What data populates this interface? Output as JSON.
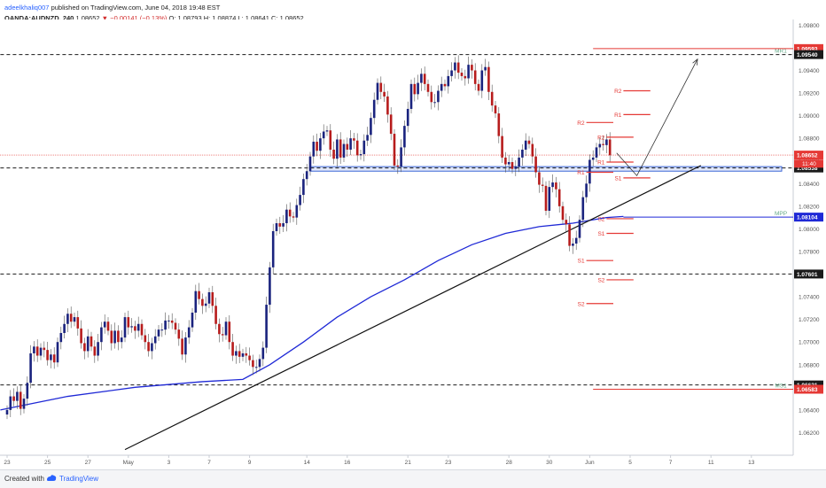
{
  "header": {
    "author": "adeelkhaliq007",
    "published": "published on TradingView.com, June 04, 2018 19:48 EST",
    "symbol": "OANDA:AUDNZD, 240",
    "last": "1.08652",
    "change": "−0.00141 (−0.13%)",
    "ohlc": "O: 1.08793  H: 1.08874  L: 1.08641  C: 1.08652"
  },
  "footer": {
    "created": "Created with",
    "brand": "TradingView"
  },
  "colors": {
    "up": "#1a237e",
    "down": "#b71c1c",
    "ma": "#1f29d6",
    "pivot": "#e53935",
    "level": "#1a1a1a",
    "support_zone": "#3c66d6",
    "axis_text": "#555555",
    "mpp": "#1f29d6",
    "current": "#e53935"
  },
  "chart_data": {
    "type": "candlestick",
    "y_range": [
      1.06,
      1.0985
    ],
    "y_ticks": [
      "1.09800",
      "1.09600",
      "1.09400",
      "1.09200",
      "1.09000",
      "1.08800",
      "1.08600",
      "1.08400",
      "1.08200",
      "1.08000",
      "1.07800",
      "1.07600",
      "1.07400",
      "1.07200",
      "1.07000",
      "1.06800",
      "1.06600",
      "1.06400",
      "1.06200"
    ],
    "x_labels": [
      {
        "label": "23",
        "i": 2
      },
      {
        "label": "25",
        "i": 14
      },
      {
        "label": "27",
        "i": 26
      },
      {
        "label": "May",
        "i": 38
      },
      {
        "label": "3",
        "i": 50
      },
      {
        "label": "7",
        "i": 62
      },
      {
        "label": "9",
        "i": 74
      },
      {
        "label": "14",
        "i": 91
      },
      {
        "label": "16",
        "i": 103
      },
      {
        "label": "21",
        "i": 121
      },
      {
        "label": "23",
        "i": 133
      },
      {
        "label": "28",
        "i": 151
      },
      {
        "label": "30",
        "i": 163
      },
      {
        "label": "Jun",
        "i": 175
      },
      {
        "label": "5",
        "i": 187
      },
      {
        "label": "7",
        "i": 199
      },
      {
        "label": "11",
        "i": 211
      },
      {
        "label": "13",
        "i": 223
      }
    ],
    "x_total": 232,
    "candles_close": [
      1.064,
      1.0652,
      1.0648,
      1.0656,
      1.0641,
      1.065,
      1.0664,
      1.069,
      1.0696,
      1.0688,
      1.0695,
      1.0693,
      1.0684,
      1.0689,
      1.0682,
      1.07,
      1.0708,
      1.0716,
      1.0725,
      1.0718,
      1.0722,
      1.0712,
      1.0699,
      1.0692,
      1.0705,
      1.0696,
      1.0688,
      1.07,
      1.0713,
      1.0718,
      1.071,
      1.0699,
      1.071,
      1.07,
      1.0704,
      1.0722,
      1.0713,
      1.0714,
      1.071,
      1.0716,
      1.0706,
      1.07,
      1.0692,
      1.0699,
      1.0705,
      1.0711,
      1.0711,
      1.0719,
      1.0719,
      1.0717,
      1.0711,
      1.0703,
      1.0689,
      1.0704,
      1.0713,
      1.0726,
      1.0745,
      1.0738,
      1.0732,
      1.0734,
      1.0744,
      1.0732,
      1.0716,
      1.0707,
      1.0706,
      1.0718,
      1.07,
      1.0688,
      1.0692,
      1.0687,
      1.069,
      1.0688,
      1.0684,
      1.0678,
      1.0678,
      1.0685,
      1.0695,
      1.0733,
      1.0766,
      1.0798,
      1.0805,
      1.0802,
      1.0805,
      1.0817,
      1.0811,
      1.081,
      1.0821,
      1.083,
      1.0844,
      1.0851,
      1.0864,
      1.0877,
      1.0869,
      1.088,
      1.0886,
      1.0887,
      1.087,
      1.0862,
      1.0879,
      1.0863,
      1.0875,
      1.087,
      1.088,
      1.0878,
      1.0865,
      1.0866,
      1.0878,
      1.0883,
      1.0898,
      1.0914,
      1.0929,
      1.0921,
      1.0917,
      1.0901,
      1.0884,
      1.0856,
      1.0855,
      1.0872,
      1.0891,
      1.0906,
      1.0928,
      1.0919,
      1.0929,
      1.0937,
      1.0928,
      1.0921,
      1.0912,
      1.0912,
      1.0922,
      1.0928,
      1.0926,
      1.0935,
      1.094,
      1.0947,
      1.0938,
      1.0935,
      1.0933,
      1.0945,
      1.094,
      1.0928,
      1.0922,
      1.094,
      1.0943,
      1.0921,
      1.0909,
      1.0902,
      1.0882,
      1.0863,
      1.0857,
      1.0859,
      1.0853,
      1.0855,
      1.0863,
      1.087,
      1.0878,
      1.0875,
      1.0864,
      1.085,
      1.0839,
      1.0838,
      1.0816,
      1.0837,
      1.0841,
      1.0835,
      1.082,
      1.0808,
      1.0804,
      1.0785,
      1.0787,
      1.0792,
      1.0808,
      1.0828,
      1.084,
      1.0861,
      1.0863,
      1.0872,
      1.0875,
      1.0874,
      1.0879,
      1.0865
    ],
    "candle_start": 2,
    "ma": [
      [
        0,
        1.064
      ],
      [
        20,
        1.0652
      ],
      [
        40,
        1.066
      ],
      [
        60,
        1.0665
      ],
      [
        72,
        1.0667
      ],
      [
        80,
        1.068
      ],
      [
        90,
        1.07
      ],
      [
        100,
        1.0722
      ],
      [
        110,
        1.074
      ],
      [
        120,
        1.0755
      ],
      [
        130,
        1.0772
      ],
      [
        140,
        1.0786
      ],
      [
        150,
        1.0796
      ],
      [
        160,
        1.0802
      ],
      [
        170,
        1.0805
      ],
      [
        180,
        1.081
      ],
      [
        185,
        1.0811
      ]
    ],
    "trendline": {
      "start": [
        37,
        1.0605
      ],
      "end": [
        208,
        1.0856
      ]
    },
    "projection": [
      [
        183,
        1.0867
      ],
      [
        189,
        1.0847
      ],
      [
        207,
        1.095
      ]
    ],
    "levels": [
      {
        "name": "MR1",
        "value": 1.0954,
        "style": "dashed",
        "from": 0,
        "label": "MR1"
      },
      {
        "name": "level_1.08538",
        "value": 1.08538,
        "style": "dashed",
        "from": 0,
        "label": ""
      },
      {
        "name": "level_1.07601",
        "value": 1.07601,
        "style": "dashed",
        "from": 0,
        "label": ""
      },
      {
        "name": "level_1.06621",
        "value": 1.06621,
        "style": "dashed",
        "from": 0,
        "label": ""
      },
      {
        "name": "MS1",
        "value": 1.06583,
        "style": "solid_red",
        "from": 176,
        "label": "MS1"
      },
      {
        "name": "MPP",
        "value": 1.08104,
        "style": "solid_blue",
        "from": 185,
        "label": "MPP"
      },
      {
        "name": "red_top",
        "value": 1.09593,
        "style": "solid_red",
        "from": 176,
        "label": ""
      }
    ],
    "support_zone": {
      "from": 92,
      "to": 232,
      "low": 1.0851,
      "high": 1.0855
    },
    "pivots": [
      {
        "label": "R2",
        "value": 1.0922,
        "x0": 185,
        "x1": 193
      },
      {
        "label": "R1",
        "value": 1.0901,
        "x0": 185,
        "x1": 193
      },
      {
        "label": "R2",
        "value": 1.0894,
        "x0": 174,
        "x1": 182
      },
      {
        "label": "R2",
        "value": 1.0881,
        "x0": 180,
        "x1": 188
      },
      {
        "label": "R1",
        "value": 1.0859,
        "x0": 180,
        "x1": 188
      },
      {
        "label": "R1",
        "value": 1.085,
        "x0": 174,
        "x1": 182
      },
      {
        "label": "S1",
        "value": 1.0845,
        "x0": 185,
        "x1": 193
      },
      {
        "label": "S2",
        "value": 1.0809,
        "x0": 180,
        "x1": 188
      },
      {
        "label": "S1",
        "value": 1.0796,
        "x0": 180,
        "x1": 188
      },
      {
        "label": "S1",
        "value": 1.0772,
        "x0": 174,
        "x1": 182
      },
      {
        "label": "S2",
        "value": 1.0755,
        "x0": 180,
        "x1": 188
      },
      {
        "label": "S2",
        "value": 1.0734,
        "x0": 174,
        "x1": 182
      }
    ],
    "price_tags": [
      {
        "value": 1.09593,
        "label": "1.09593",
        "bg": "#e53935"
      },
      {
        "value": 1.0954,
        "label": "1.09540",
        "bg": "#1a1a1a"
      },
      {
        "value": 1.08652,
        "label": "1.08652",
        "bg": "#e53935"
      },
      {
        "value": 1.08538,
        "label": "1.08538",
        "bg": "#1a1a1a"
      },
      {
        "value": 1.08104,
        "label": "1.08104",
        "bg": "#1f29d6"
      },
      {
        "value": 1.07601,
        "label": "1.07601",
        "bg": "#1a1a1a"
      },
      {
        "value": 1.06621,
        "label": "1.06621",
        "bg": "#1a1a1a"
      },
      {
        "value": 1.06583,
        "label": "1.06583",
        "bg": "#e53935"
      }
    ],
    "countdown": {
      "value": 1.0858,
      "label": "11:40",
      "bg": "#e53935"
    },
    "current_price": 1.08652
  }
}
